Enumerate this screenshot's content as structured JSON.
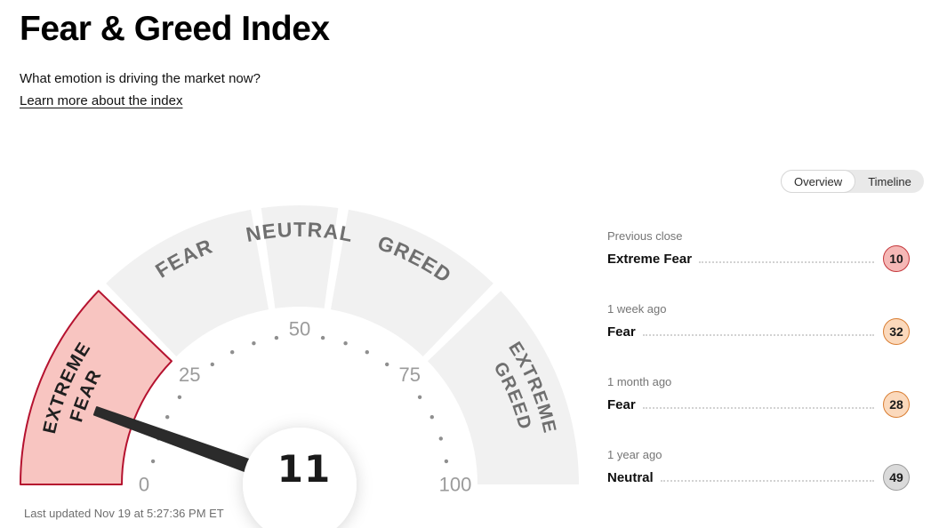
{
  "page": {
    "title": "Fear & Greed Index",
    "subtitle": "What emotion is driving the market now?",
    "link": "Learn more about the index",
    "last_updated": "Last updated Nov 19 at 5:27:36 PM ET"
  },
  "tabs": {
    "overview": "Overview",
    "timeline": "Timeline",
    "selected": "Overview"
  },
  "chart_data": {
    "type": "gauge",
    "title": "Fear & Greed Index",
    "value": 11,
    "rating": "Extreme Fear",
    "min": 0,
    "max": 100,
    "tick_labels": [
      0,
      25,
      50,
      75,
      100
    ],
    "dot_step": 5,
    "segments": [
      {
        "label": "Extreme Fear",
        "lines": [
          "EXTREME",
          "FEAR"
        ],
        "from": 0,
        "to": 25,
        "highlighted": true
      },
      {
        "label": "Fear",
        "lines": [
          "FEAR"
        ],
        "from": 25,
        "to": 45,
        "highlighted": false
      },
      {
        "label": "Neutral",
        "lines": [
          "NEUTRAL"
        ],
        "from": 45,
        "to": 55,
        "highlighted": false
      },
      {
        "label": "Greed",
        "lines": [
          "GREED"
        ],
        "from": 55,
        "to": 75,
        "highlighted": false
      },
      {
        "label": "Extreme Greed",
        "lines": [
          "EXTREME",
          "GREED"
        ],
        "from": 75,
        "to": 100,
        "highlighted": false
      }
    ],
    "colors": {
      "segment_default": "#f1f1f1",
      "segment_highlight_fill": "#f8c5c1",
      "segment_highlight_stroke": "#b5122f",
      "label_default": "#6f6f6f",
      "label_highlight": "#1f1f1f",
      "tick_dot": "#8f8f8f",
      "tick_number": "#9b9b9b",
      "needle": "#2b2b2b",
      "value_text": "#1a1a1a"
    }
  },
  "history": [
    {
      "period": "Previous close",
      "rating": "Extreme Fear",
      "value": 10,
      "color_fill": "#f5b8b6",
      "color_stroke": "#c5383c"
    },
    {
      "period": "1 week ago",
      "rating": "Fear",
      "value": 32,
      "color_fill": "#fbd9bc",
      "color_stroke": "#d97e33"
    },
    {
      "period": "1 month ago",
      "rating": "Fear",
      "value": 28,
      "color_fill": "#fbd9bc",
      "color_stroke": "#d97e33"
    },
    {
      "period": "1 year ago",
      "rating": "Neutral",
      "value": 49,
      "color_fill": "#dadada",
      "color_stroke": "#9e9e9e"
    }
  ]
}
